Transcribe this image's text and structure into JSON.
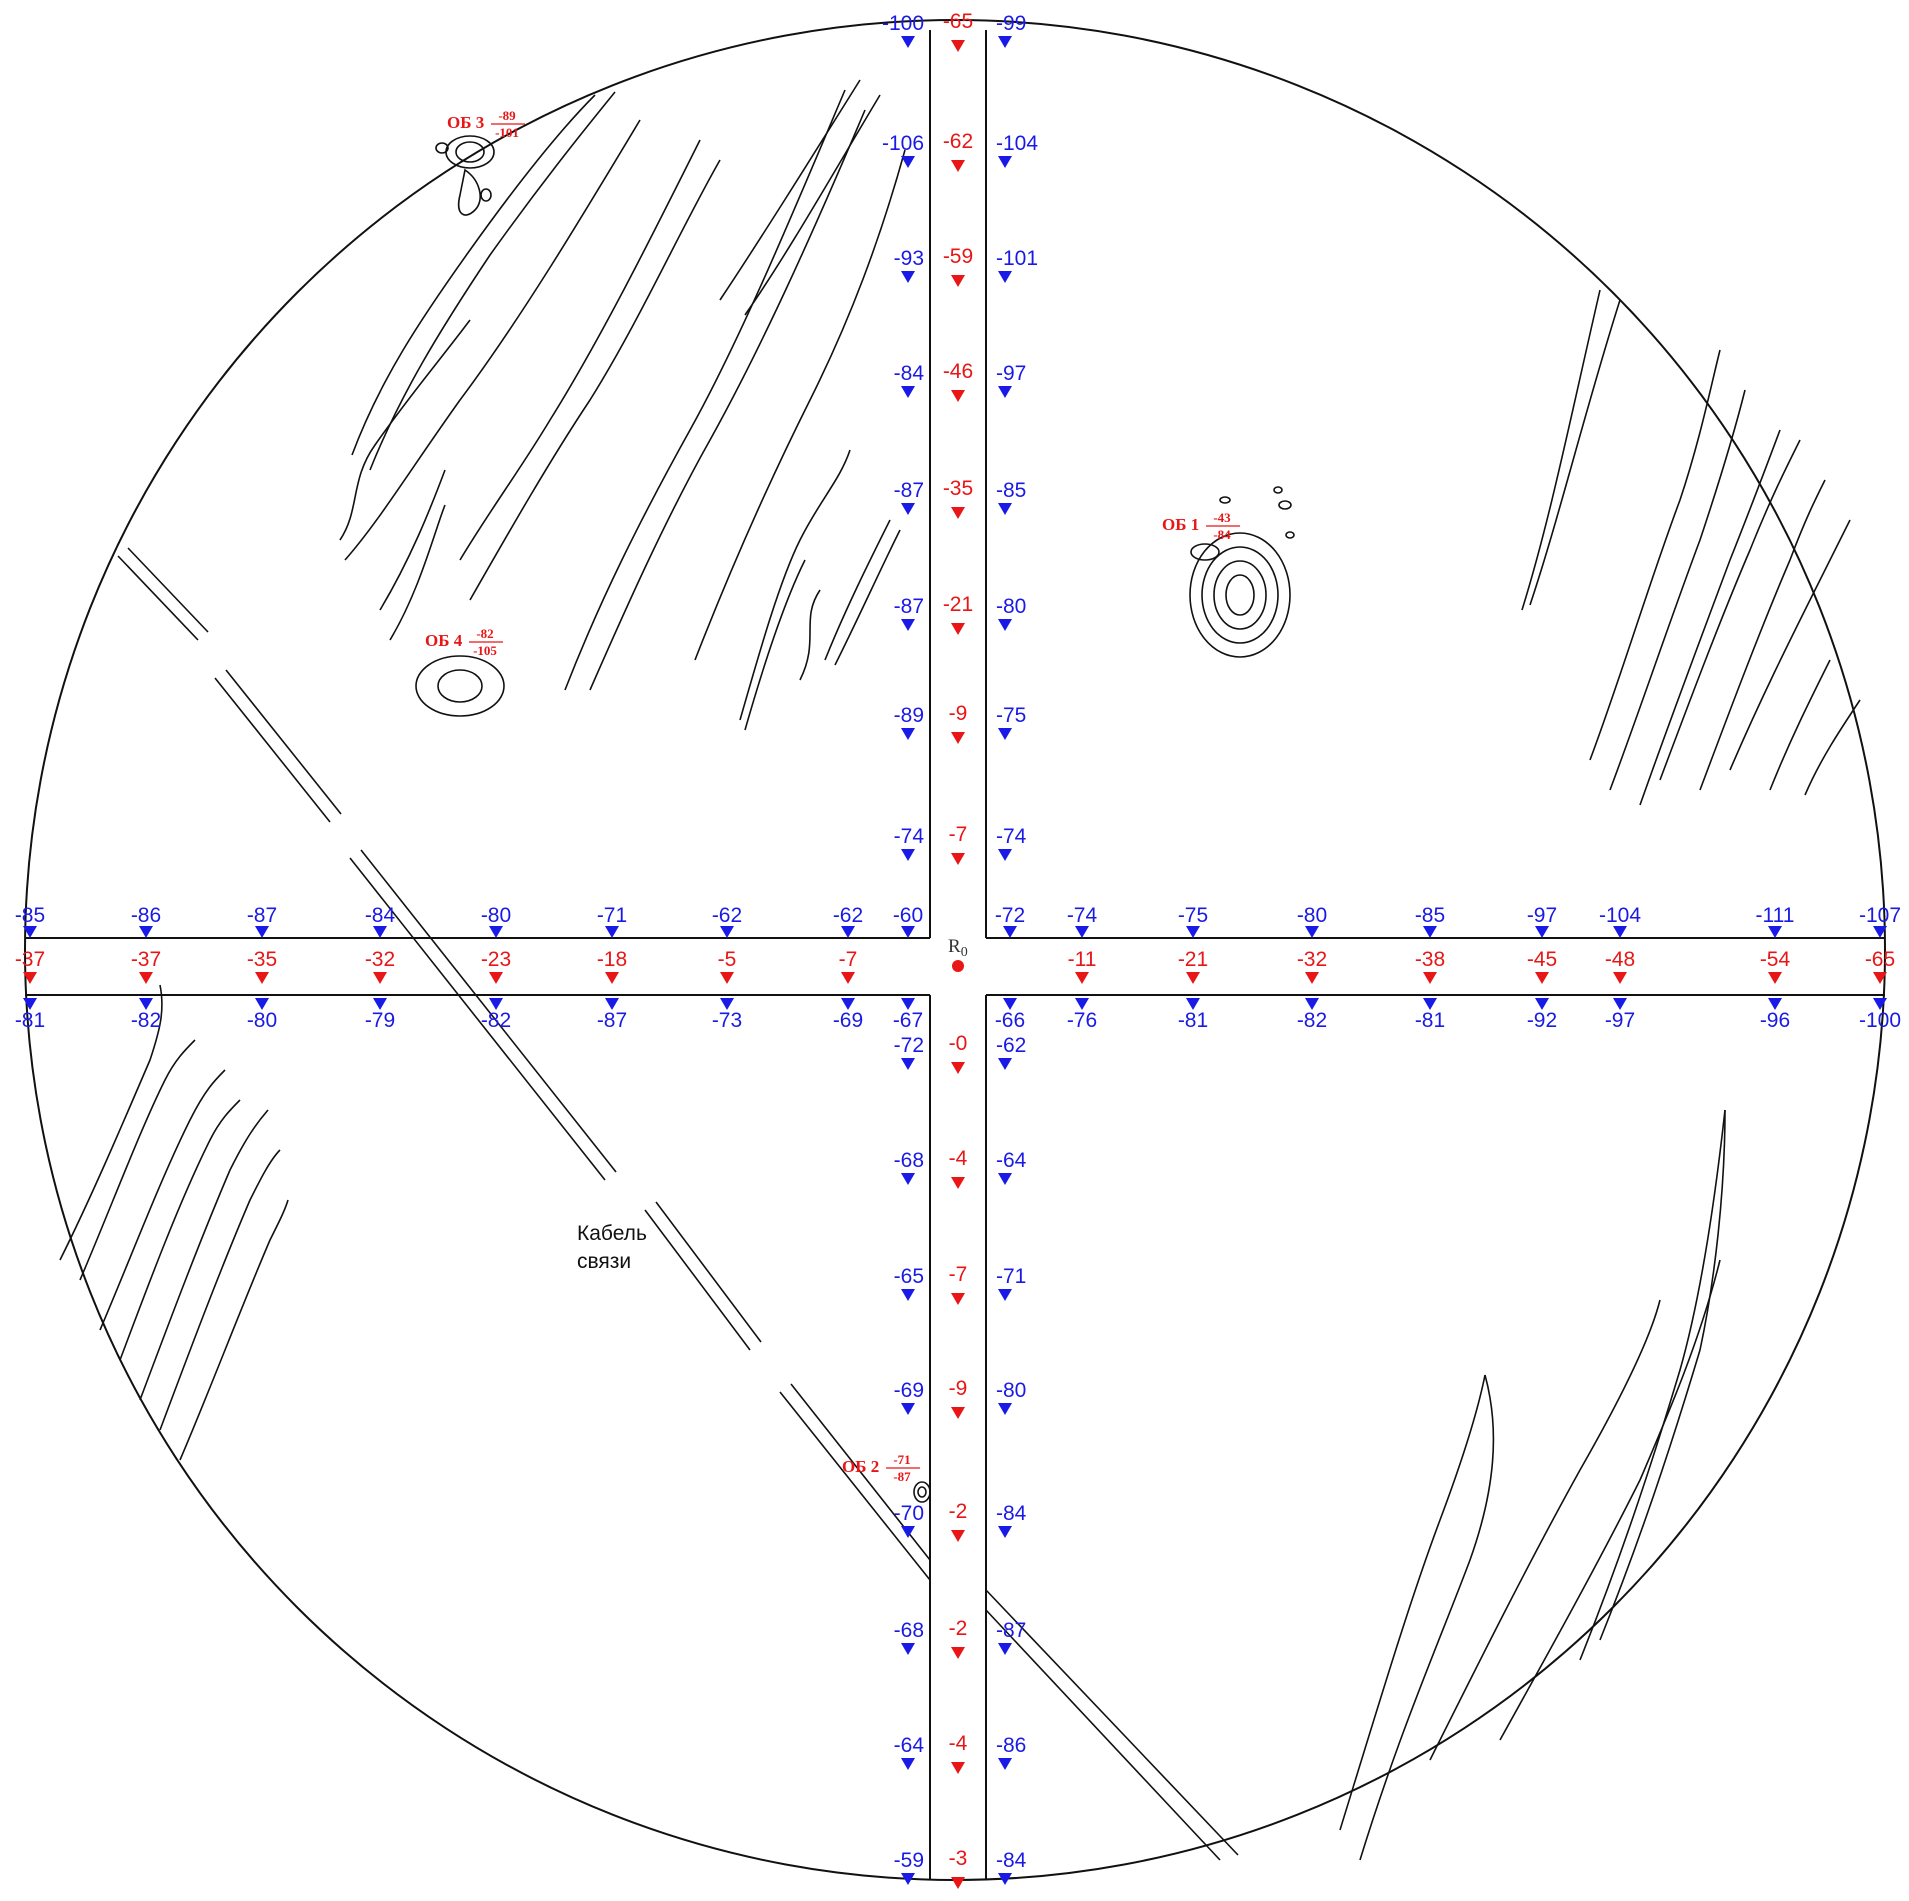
{
  "colors": {
    "upper_lower": "#1a1ae6",
    "middle": "#e81616",
    "lines": "#111111"
  },
  "origin_label": "R",
  "origin_sub": "0",
  "cable_label": [
    "Кабель",
    "связи"
  ],
  "north": {
    "left": [
      "-100",
      "-106",
      "-93",
      "-84",
      "-87",
      "-87",
      "-89",
      "-74"
    ],
    "mid": [
      "-65",
      "-62",
      "-59",
      "-46",
      "-35",
      "-21",
      "-9",
      "-7"
    ],
    "right": [
      "-99",
      "-104",
      "-101",
      "-97",
      "-85",
      "-80",
      "-75",
      "-74"
    ]
  },
  "south": {
    "left": [
      "-72",
      "-68",
      "-65",
      "-69",
      "-70",
      "-68",
      "-64",
      "-59"
    ],
    "mid": [
      "-0",
      "-4",
      "-7",
      "-9",
      "-2",
      "-2",
      "-4",
      "-3"
    ],
    "right": [
      "-62",
      "-64",
      "-71",
      "-80",
      "-84",
      "-87",
      "-86",
      "-84"
    ]
  },
  "west": {
    "top": [
      "-85",
      "-86",
      "-87",
      "-84",
      "-80",
      "-71",
      "-62",
      "-62",
      "-60"
    ],
    "mid": [
      "-37",
      "-37",
      "-35",
      "-32",
      "-23",
      "-18",
      "-5",
      "-7"
    ],
    "bottom": [
      "-81",
      "-82",
      "-80",
      "-79",
      "-82",
      "-87",
      "-73",
      "-69",
      "-67"
    ]
  },
  "east": {
    "top": [
      "-72",
      "-74",
      "-75",
      "-80",
      "-85",
      "-97",
      "-104",
      "-111",
      "-107"
    ],
    "mid": [
      "-11",
      "-21",
      "-32",
      "-38",
      "-45",
      "-48",
      "-54",
      "-65"
    ],
    "bottom": [
      "-66",
      "-76",
      "-81",
      "-82",
      "-81",
      "-92",
      "-97",
      "-96",
      "-100"
    ]
  },
  "objects": [
    {
      "name": "ОБ 1",
      "num": "-43",
      "den": "-84"
    },
    {
      "name": "ОБ 2",
      "num": "-71",
      "den": "-87"
    },
    {
      "name": "ОБ 3",
      "num": "-89",
      "den": "-101"
    },
    {
      "name": "ОБ 4",
      "num": "-82",
      "den": "-105"
    }
  ]
}
